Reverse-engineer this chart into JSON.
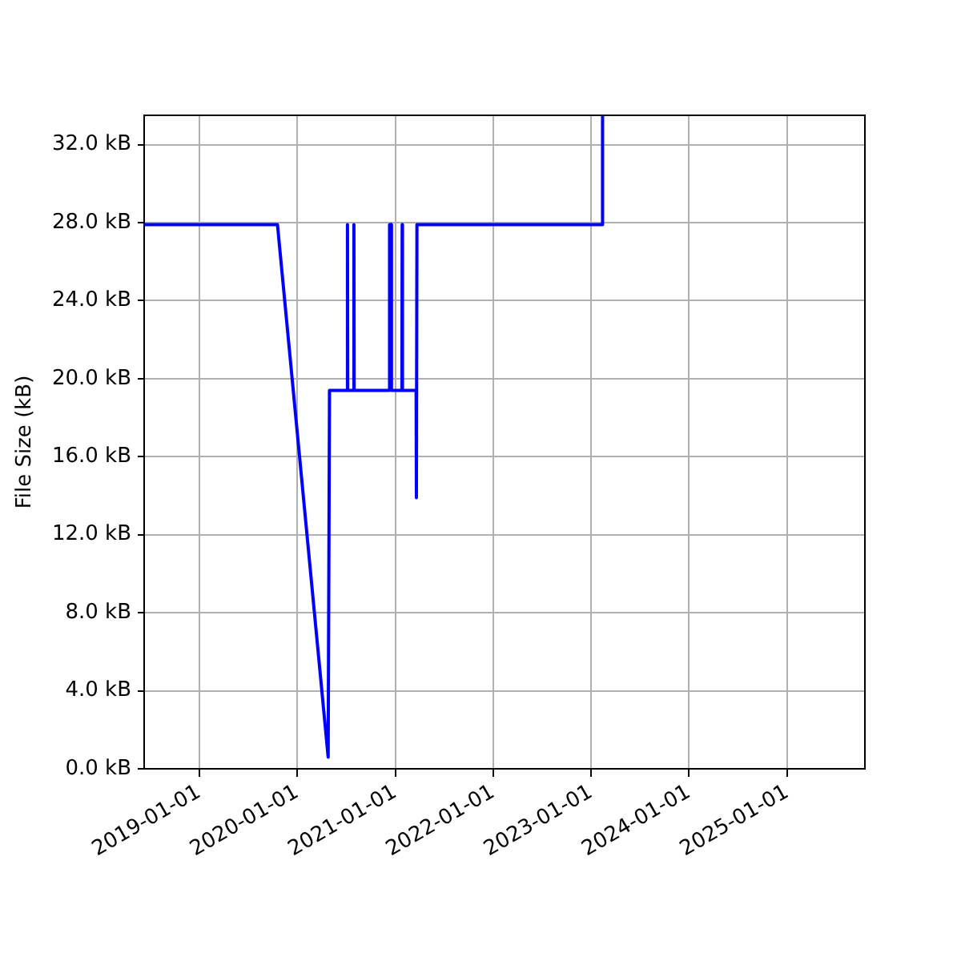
{
  "chart_data": {
    "type": "line",
    "ylabel": "File Size (kB)",
    "x": [
      "2018-06-10",
      "2019-10-20",
      "2020-04-26",
      "2020-05-01",
      "2020-07-06",
      "2020-07-07",
      "2020-07-08",
      "2020-07-30",
      "2020-07-31",
      "2020-08-01",
      "2020-12-10",
      "2020-12-11",
      "2020-12-17",
      "2020-12-18",
      "2021-01-26",
      "2021-01-27",
      "2021-01-28",
      "2021-03-20",
      "2021-03-21",
      "2021-03-23",
      "2023-02-12",
      "2023-02-13"
    ],
    "series": [
      {
        "color": "#0000ff",
        "values": [
          27.9,
          27.9,
          0.6,
          19.4,
          19.4,
          27.9,
          19.4,
          19.4,
          27.9,
          19.4,
          19.4,
          27.9,
          27.9,
          19.4,
          19.4,
          27.9,
          19.4,
          19.4,
          13.9,
          27.9,
          27.9,
          33.5
        ]
      }
    ],
    "xlim": [
      "2018-06-10",
      "2025-10-18"
    ],
    "xticks": [
      "2019-01-01",
      "2020-01-01",
      "2021-01-01",
      "2022-01-01",
      "2023-01-01",
      "2024-01-01",
      "2025-01-01"
    ],
    "ylim": [
      0,
      33.5
    ],
    "yticks": [
      {
        "value": 0,
        "label": "0.0 kB"
      },
      {
        "value": 4,
        "label": "4.0 kB"
      },
      {
        "value": 8,
        "label": "8.0 kB"
      },
      {
        "value": 12,
        "label": "12.0 kB"
      },
      {
        "value": 16,
        "label": "16.0 kB"
      },
      {
        "value": 20,
        "label": "20.0 kB"
      },
      {
        "value": 24,
        "label": "24.0 kB"
      },
      {
        "value": 28,
        "label": "28.0 kB"
      },
      {
        "value": 32,
        "label": "32.0 kB"
      }
    ],
    "grid": true
  }
}
